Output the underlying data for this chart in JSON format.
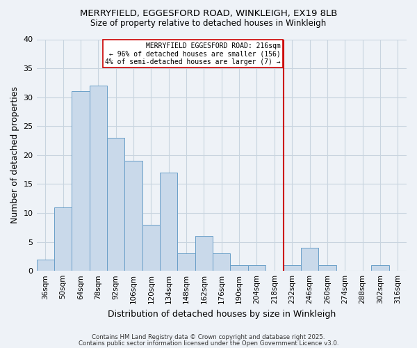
{
  "title_line1": "MERRYFIELD, EGGESFORD ROAD, WINKLEIGH, EX19 8LB",
  "title_line2": "Size of property relative to detached houses in Winkleigh",
  "xlabel": "Distribution of detached houses by size in Winkleigh",
  "ylabel": "Number of detached properties",
  "bar_labels": [
    "36sqm",
    "50sqm",
    "64sqm",
    "78sqm",
    "92sqm",
    "106sqm",
    "120sqm",
    "134sqm",
    "148sqm",
    "162sqm",
    "176sqm",
    "190sqm",
    "204sqm",
    "218sqm",
    "232sqm",
    "246sqm",
    "260sqm",
    "274sqm",
    "288sqm",
    "302sqm",
    "316sqm"
  ],
  "bar_values": [
    2,
    11,
    31,
    32,
    23,
    19,
    8,
    17,
    3,
    6,
    3,
    1,
    1,
    0,
    1,
    4,
    1,
    0,
    0,
    1,
    0
  ],
  "bar_color": "#c9d9ea",
  "bar_edge_color": "#6a9fc8",
  "grid_color": "#c8d4df",
  "background_color": "#eef2f7",
  "vline_x_index": 13,
  "vline_color": "#cc0000",
  "annotation_text": "MERRYFIELD EGGESFORD ROAD: 216sqm\n← 96% of detached houses are smaller (156)\n4% of semi-detached houses are larger (7) →",
  "annotation_box_edge": "#cc0000",
  "ylim": [
    0,
    40
  ],
  "yticks": [
    0,
    5,
    10,
    15,
    20,
    25,
    30,
    35,
    40
  ],
  "footnote1": "Contains HM Land Registry data © Crown copyright and database right 2025.",
  "footnote2": "Contains public sector information licensed under the Open Government Licence v3.0."
}
